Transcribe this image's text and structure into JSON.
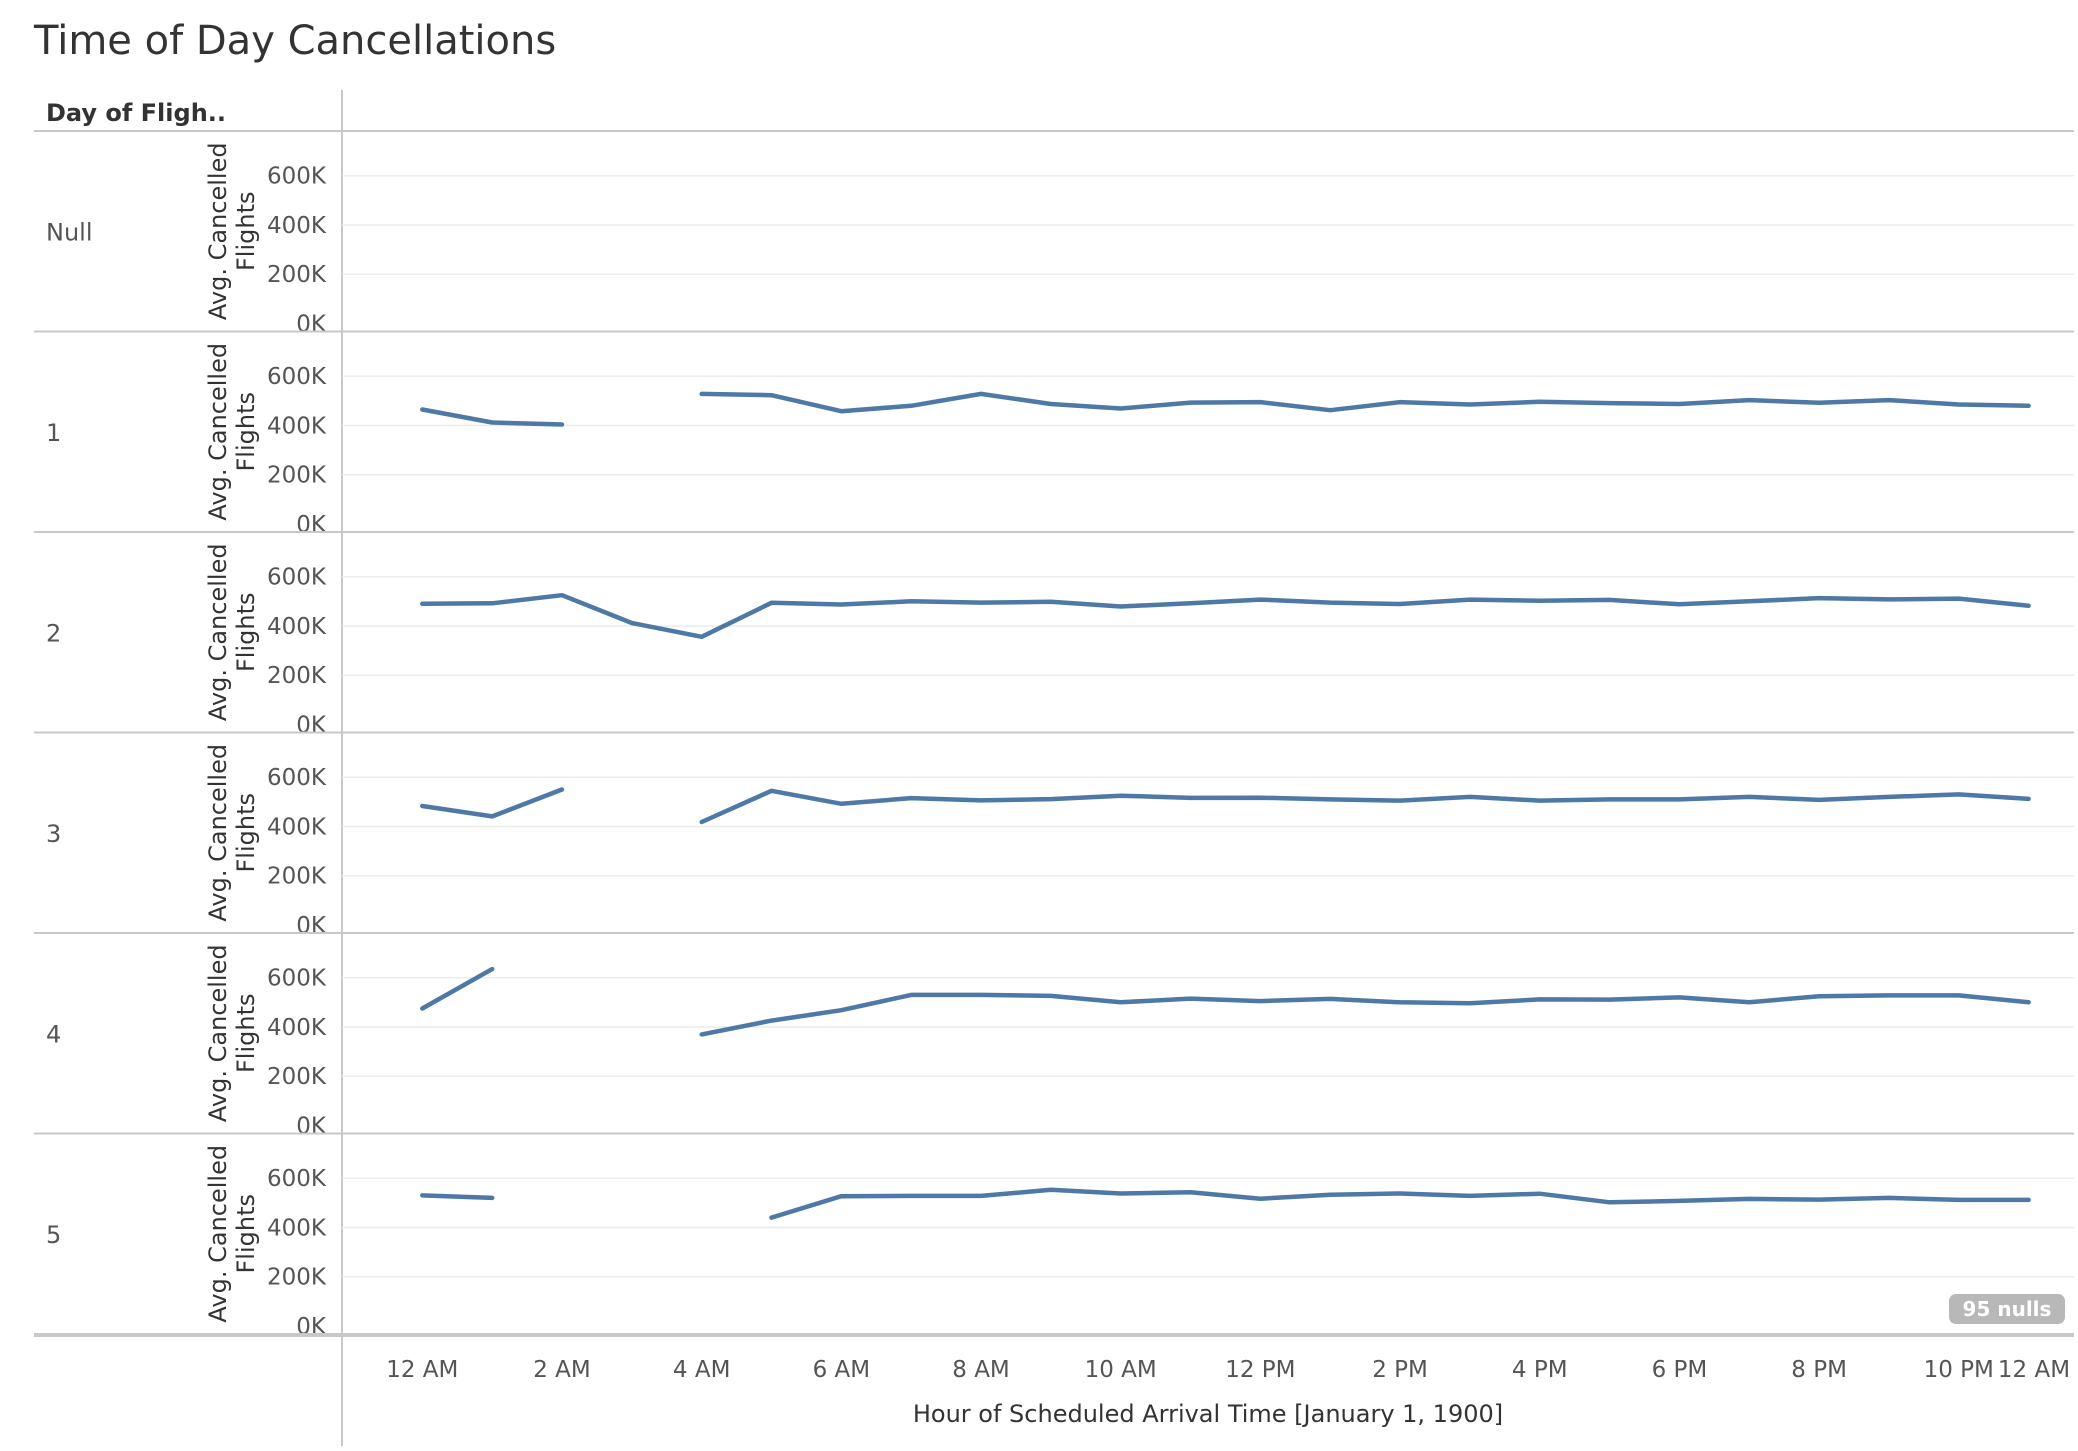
{
  "title": "Time of Day Cancellations",
  "nulls_badge": "95 nulls",
  "colors": {
    "line": "#4e79a7",
    "grid": "#ececec",
    "border": "#c8c8c8",
    "text": "#555555"
  },
  "chart_data": {
    "type": "line",
    "row_header": "Day of Fligh..",
    "ylabel": "Avg. Cancelled Flights",
    "xlabel": "Hour of Scheduled Arrival Time [January 1, 1900]",
    "x_ticks": [
      "12 AM",
      "2 AM",
      "4 AM",
      "6 AM",
      "8 AM",
      "10 AM",
      "12 PM",
      "2 PM",
      "4 PM",
      "6 PM",
      "8 PM",
      "10 PM",
      "12 AM"
    ],
    "y_ticks": [
      "600K",
      "400K",
      "200K",
      "0K"
    ],
    "y_tick_values": [
      600000,
      400000,
      200000,
      0
    ],
    "ylim": [
      0,
      680000
    ],
    "xlim": [
      -1.15,
      23.65
    ],
    "x": [
      0,
      1,
      2,
      3,
      4,
      5,
      6,
      7,
      8,
      9,
      10,
      11,
      12,
      13,
      14,
      15,
      16,
      17,
      18,
      19,
      20,
      21,
      22,
      23
    ],
    "grid": true,
    "rows": [
      {
        "label": "Null",
        "values": [
          null,
          null,
          null,
          null,
          null,
          null,
          null,
          null,
          null,
          null,
          null,
          null,
          null,
          null,
          null,
          null,
          null,
          null,
          null,
          null,
          null,
          null,
          null,
          null
        ]
      },
      {
        "label": "1",
        "values": [
          465000,
          412000,
          404000,
          null,
          528000,
          523000,
          458000,
          480000,
          528000,
          487000,
          469000,
          493000,
          495000,
          462000,
          495000,
          485000,
          496000,
          491000,
          487000,
          503000,
          492000,
          503000,
          485000,
          480000
        ]
      },
      {
        "label": "2",
        "values": [
          490000,
          492000,
          525000,
          412000,
          356000,
          494000,
          487000,
          500000,
          495000,
          498000,
          479000,
          492000,
          507000,
          495000,
          489000,
          507000,
          502000,
          506000,
          488000,
          500000,
          513000,
          508000,
          511000,
          482000
        ]
      },
      {
        "label": "3",
        "values": [
          483000,
          441000,
          550000,
          null,
          418000,
          545000,
          492000,
          515000,
          506000,
          511000,
          525000,
          516000,
          517000,
          510000,
          505000,
          520000,
          505000,
          510000,
          510000,
          520000,
          508000,
          520000,
          530000,
          512000
        ]
      },
      {
        "label": "4",
        "values": [
          475000,
          635000,
          null,
          null,
          370000,
          426000,
          468000,
          530000,
          530000,
          526000,
          500000,
          515000,
          505000,
          514000,
          500000,
          496000,
          512000,
          511000,
          520000,
          500000,
          525000,
          528000,
          528000,
          500000
        ]
      },
      {
        "label": "5",
        "values": [
          530000,
          520000,
          null,
          null,
          null,
          440000,
          527000,
          528000,
          528000,
          553000,
          538000,
          543000,
          517000,
          533000,
          538000,
          528000,
          537000,
          502000,
          508000,
          516000,
          513000,
          520000,
          512000,
          512000
        ]
      }
    ]
  }
}
